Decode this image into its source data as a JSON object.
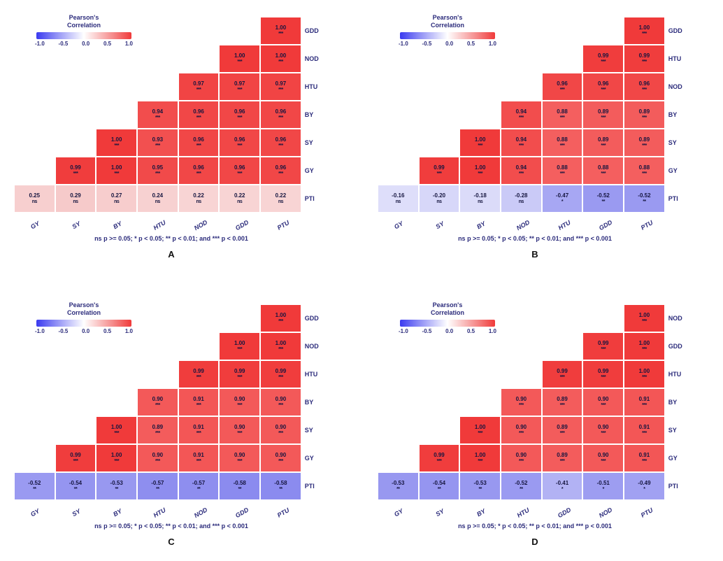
{
  "meta": {
    "title": "Pearson's Correlation",
    "scale_ticks": [
      "-1.0",
      "-0.5",
      "0.0",
      "0.5",
      "1.0"
    ],
    "footnote": "ns p >= 0.05; * p < 0.05; ** p < 0.01; and *** p < 0.001",
    "cell_fontsize_pt": 8,
    "label_fontsize_pt": 9,
    "background": "#ffffff",
    "text_color": "#2b2b7b",
    "gradient_stops": [
      "#3a3af0",
      "#8c8cf5",
      "#ffffff",
      "#f58c8c",
      "#f03a3a"
    ]
  },
  "panels": [
    {
      "id": "A",
      "row_labels": [
        "GDD",
        "NOD",
        "HTU",
        "BY",
        "SY",
        "GY",
        "PTI"
      ],
      "col_labels": [
        "GY",
        "SY",
        "BY",
        "HTU",
        "NOD",
        "GDD",
        "PTU"
      ],
      "cells": [
        [
          null,
          null,
          null,
          null,
          null,
          null,
          {
            "v": "1.00",
            "s": "***",
            "c": "#f03a3a"
          }
        ],
        [
          null,
          null,
          null,
          null,
          null,
          {
            "v": "1.00",
            "s": "***",
            "c": "#f03a3a"
          },
          {
            "v": "1.00",
            "s": "***",
            "c": "#f03a3a"
          }
        ],
        [
          null,
          null,
          null,
          null,
          {
            "v": "0.97",
            "s": "***",
            "c": "#f14444"
          },
          {
            "v": "0.97",
            "s": "***",
            "c": "#f14444"
          },
          {
            "v": "0.97",
            "s": "***",
            "c": "#f14444"
          }
        ],
        [
          null,
          null,
          null,
          {
            "v": "0.94",
            "s": "***",
            "c": "#f24d4d"
          },
          {
            "v": "0.96",
            "s": "***",
            "c": "#f14747"
          },
          {
            "v": "0.96",
            "s": "***",
            "c": "#f14747"
          },
          {
            "v": "0.96",
            "s": "***",
            "c": "#f14747"
          }
        ],
        [
          null,
          null,
          {
            "v": "1.00",
            "s": "***",
            "c": "#f03a3a"
          },
          {
            "v": "0.93",
            "s": "***",
            "c": "#f25050"
          },
          {
            "v": "0.96",
            "s": "***",
            "c": "#f14747"
          },
          {
            "v": "0.96",
            "s": "***",
            "c": "#f14747"
          },
          {
            "v": "0.96",
            "s": "***",
            "c": "#f14747"
          }
        ],
        [
          null,
          {
            "v": "0.99",
            "s": "***",
            "c": "#f03d3d"
          },
          {
            "v": "1.00",
            "s": "***",
            "c": "#f03a3a"
          },
          {
            "v": "0.95",
            "s": "***",
            "c": "#f14a4a"
          },
          {
            "v": "0.96",
            "s": "***",
            "c": "#f14747"
          },
          {
            "v": "0.96",
            "s": "***",
            "c": "#f14747"
          },
          {
            "v": "0.96",
            "s": "***",
            "c": "#f14747"
          }
        ],
        [
          {
            "v": "0.25",
            "s": "ns",
            "c": "#f7cfcf"
          },
          {
            "v": "0.29",
            "s": "ns",
            "c": "#f6caca"
          },
          {
            "v": "0.27",
            "s": "ns",
            "c": "#f7cdcd"
          },
          {
            "v": "0.24",
            "s": "ns",
            "c": "#f7d1d1"
          },
          {
            "v": "0.22",
            "s": "ns",
            "c": "#f8d4d4"
          },
          {
            "v": "0.22",
            "s": "ns",
            "c": "#f8d4d4"
          },
          {
            "v": "0.22",
            "s": "ns",
            "c": "#f8d4d4"
          }
        ]
      ]
    },
    {
      "id": "B",
      "row_labels": [
        "GDD",
        "HTU",
        "NOD",
        "BY",
        "SY",
        "GY",
        "PTI"
      ],
      "col_labels": [
        "GY",
        "SY",
        "BY",
        "NOD",
        "HTU",
        "GDD",
        "PTU"
      ],
      "cells": [
        [
          null,
          null,
          null,
          null,
          null,
          null,
          {
            "v": "1.00",
            "s": "***",
            "c": "#f03a3a"
          }
        ],
        [
          null,
          null,
          null,
          null,
          null,
          {
            "v": "0.99",
            "s": "***",
            "c": "#f03d3d"
          },
          {
            "v": "0.99",
            "s": "***",
            "c": "#f03d3d"
          }
        ],
        [
          null,
          null,
          null,
          null,
          {
            "v": "0.96",
            "s": "***",
            "c": "#f14747"
          },
          {
            "v": "0.96",
            "s": "***",
            "c": "#f14747"
          },
          {
            "v": "0.96",
            "s": "***",
            "c": "#f14747"
          }
        ],
        [
          null,
          null,
          null,
          {
            "v": "0.94",
            "s": "***",
            "c": "#f24d4d"
          },
          {
            "v": "0.88",
            "s": "***",
            "c": "#f45f5f"
          },
          {
            "v": "0.89",
            "s": "***",
            "c": "#f35c5c"
          },
          {
            "v": "0.89",
            "s": "***",
            "c": "#f35c5c"
          }
        ],
        [
          null,
          null,
          {
            "v": "1.00",
            "s": "***",
            "c": "#f03a3a"
          },
          {
            "v": "0.94",
            "s": "***",
            "c": "#f24d4d"
          },
          {
            "v": "0.88",
            "s": "***",
            "c": "#f45f5f"
          },
          {
            "v": "0.89",
            "s": "***",
            "c": "#f35c5c"
          },
          {
            "v": "0.89",
            "s": "***",
            "c": "#f35c5c"
          }
        ],
        [
          null,
          {
            "v": "0.99",
            "s": "***",
            "c": "#f03d3d"
          },
          {
            "v": "1.00",
            "s": "***",
            "c": "#f03a3a"
          },
          {
            "v": "0.94",
            "s": "***",
            "c": "#f24d4d"
          },
          {
            "v": "0.88",
            "s": "***",
            "c": "#f45f5f"
          },
          {
            "v": "0.88",
            "s": "***",
            "c": "#f45f5f"
          },
          {
            "v": "0.88",
            "s": "***",
            "c": "#f45f5f"
          }
        ],
        [
          {
            "v": "-0.16",
            "s": "ns",
            "c": "#dedefa"
          },
          {
            "v": "-0.20",
            "s": "ns",
            "c": "#d7d7f9"
          },
          {
            "v": "-0.18",
            "s": "ns",
            "c": "#dbdbf9"
          },
          {
            "v": "-0.28",
            "s": "ns",
            "c": "#cacaf7"
          },
          {
            "v": "-0.47",
            "s": "*",
            "c": "#a7a7f3"
          },
          {
            "v": "-0.52",
            "s": "**",
            "c": "#9a9af1"
          },
          {
            "v": "-0.52",
            "s": "**",
            "c": "#9a9af1"
          }
        ]
      ]
    },
    {
      "id": "C",
      "row_labels": [
        "GDD",
        "NOD",
        "HTU",
        "BY",
        "SY",
        "GY",
        "PTI"
      ],
      "col_labels": [
        "GY",
        "SY",
        "BY",
        "HTU",
        "NOD",
        "GDD",
        "PTU"
      ],
      "cells": [
        [
          null,
          null,
          null,
          null,
          null,
          null,
          {
            "v": "1.00",
            "s": "***",
            "c": "#f03a3a"
          }
        ],
        [
          null,
          null,
          null,
          null,
          null,
          {
            "v": "1.00",
            "s": "***",
            "c": "#f03a3a"
          },
          {
            "v": "1.00",
            "s": "***",
            "c": "#f03a3a"
          }
        ],
        [
          null,
          null,
          null,
          null,
          {
            "v": "0.99",
            "s": "***",
            "c": "#f03d3d"
          },
          {
            "v": "0.99",
            "s": "***",
            "c": "#f03d3d"
          },
          {
            "v": "0.99",
            "s": "***",
            "c": "#f03d3d"
          }
        ],
        [
          null,
          null,
          null,
          {
            "v": "0.90",
            "s": "***",
            "c": "#f35959"
          },
          {
            "v": "0.91",
            "s": "***",
            "c": "#f35656"
          },
          {
            "v": "0.90",
            "s": "***",
            "c": "#f35959"
          },
          {
            "v": "0.90",
            "s": "***",
            "c": "#f35959"
          }
        ],
        [
          null,
          null,
          {
            "v": "1.00",
            "s": "***",
            "c": "#f03a3a"
          },
          {
            "v": "0.89",
            "s": "***",
            "c": "#f35c5c"
          },
          {
            "v": "0.91",
            "s": "***",
            "c": "#f35656"
          },
          {
            "v": "0.90",
            "s": "***",
            "c": "#f35959"
          },
          {
            "v": "0.90",
            "s": "***",
            "c": "#f35959"
          }
        ],
        [
          null,
          {
            "v": "0.99",
            "s": "***",
            "c": "#f03d3d"
          },
          {
            "v": "1.00",
            "s": "***",
            "c": "#f03a3a"
          },
          {
            "v": "0.90",
            "s": "***",
            "c": "#f35959"
          },
          {
            "v": "0.91",
            "s": "***",
            "c": "#f35656"
          },
          {
            "v": "0.90",
            "s": "***",
            "c": "#f35959"
          },
          {
            "v": "0.90",
            "s": "***",
            "c": "#f35959"
          }
        ],
        [
          {
            "v": "-0.52",
            "s": "**",
            "c": "#9a9af1"
          },
          {
            "v": "-0.54",
            "s": "**",
            "c": "#9595f0"
          },
          {
            "v": "-0.53",
            "s": "**",
            "c": "#9898f0"
          },
          {
            "v": "-0.57",
            "s": "**",
            "c": "#8e8eef"
          },
          {
            "v": "-0.57",
            "s": "**",
            "c": "#8e8eef"
          },
          {
            "v": "-0.58",
            "s": "**",
            "c": "#8b8bef"
          },
          {
            "v": "-0.58",
            "s": "**",
            "c": "#8b8bef"
          }
        ]
      ]
    },
    {
      "id": "D",
      "row_labels": [
        "NOD",
        "GDD",
        "HTU",
        "BY",
        "SY",
        "GY",
        "PTI"
      ],
      "col_labels": [
        "GY",
        "SY",
        "BY",
        "HTU",
        "GDD",
        "NOD",
        "PTU"
      ],
      "cells": [
        [
          null,
          null,
          null,
          null,
          null,
          null,
          {
            "v": "1.00",
            "s": "***",
            "c": "#f03a3a"
          }
        ],
        [
          null,
          null,
          null,
          null,
          null,
          {
            "v": "0.99",
            "s": "***",
            "c": "#f03d3d"
          },
          {
            "v": "1.00",
            "s": "***",
            "c": "#f03a3a"
          }
        ],
        [
          null,
          null,
          null,
          null,
          {
            "v": "0.99",
            "s": "***",
            "c": "#f03d3d"
          },
          {
            "v": "0.99",
            "s": "***",
            "c": "#f03d3d"
          },
          {
            "v": "1.00",
            "s": "***",
            "c": "#f03a3a"
          }
        ],
        [
          null,
          null,
          null,
          {
            "v": "0.90",
            "s": "***",
            "c": "#f35959"
          },
          {
            "v": "0.89",
            "s": "***",
            "c": "#f35c5c"
          },
          {
            "v": "0.90",
            "s": "***",
            "c": "#f35959"
          },
          {
            "v": "0.91",
            "s": "***",
            "c": "#f35656"
          }
        ],
        [
          null,
          null,
          {
            "v": "1.00",
            "s": "***",
            "c": "#f03a3a"
          },
          {
            "v": "0.90",
            "s": "***",
            "c": "#f35959"
          },
          {
            "v": "0.89",
            "s": "***",
            "c": "#f35c5c"
          },
          {
            "v": "0.90",
            "s": "***",
            "c": "#f35959"
          },
          {
            "v": "0.91",
            "s": "***",
            "c": "#f35656"
          }
        ],
        [
          null,
          {
            "v": "0.99",
            "s": "***",
            "c": "#f03d3d"
          },
          {
            "v": "1.00",
            "s": "***",
            "c": "#f03a3a"
          },
          {
            "v": "0.90",
            "s": "***",
            "c": "#f35959"
          },
          {
            "v": "0.89",
            "s": "***",
            "c": "#f35c5c"
          },
          {
            "v": "0.90",
            "s": "***",
            "c": "#f35959"
          },
          {
            "v": "0.91",
            "s": "***",
            "c": "#f35656"
          }
        ],
        [
          {
            "v": "-0.53",
            "s": "**",
            "c": "#9898f0"
          },
          {
            "v": "-0.54",
            "s": "**",
            "c": "#9595f0"
          },
          {
            "v": "-0.53",
            "s": "**",
            "c": "#9898f0"
          },
          {
            "v": "-0.52",
            "s": "**",
            "c": "#9a9af1"
          },
          {
            "v": "-0.41",
            "s": "*",
            "c": "#b2b2f4"
          },
          {
            "v": "-0.51",
            "s": "*",
            "c": "#9d9df1"
          },
          {
            "v": "-0.49",
            "s": "*",
            "c": "#a1a1f2"
          }
        ]
      ]
    }
  ]
}
